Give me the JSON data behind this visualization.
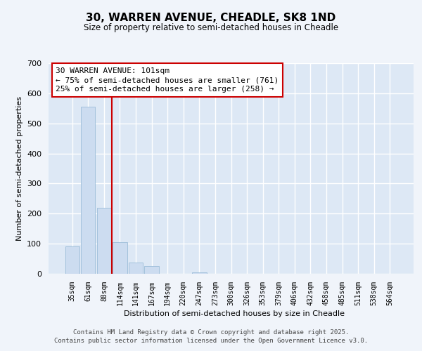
{
  "title_line1": "30, WARREN AVENUE, CHEADLE, SK8 1ND",
  "title_line2": "Size of property relative to semi-detached houses in Cheadle",
  "xlabel": "Distribution of semi-detached houses by size in Cheadle",
  "ylabel": "Number of semi-detached properties",
  "categories": [
    "35sqm",
    "61sqm",
    "88sqm",
    "114sqm",
    "141sqm",
    "167sqm",
    "194sqm",
    "220sqm",
    "247sqm",
    "273sqm",
    "300sqm",
    "326sqm",
    "353sqm",
    "379sqm",
    "406sqm",
    "432sqm",
    "458sqm",
    "485sqm",
    "511sqm",
    "538sqm",
    "564sqm"
  ],
  "values": [
    90,
    555,
    220,
    105,
    37,
    25,
    0,
    0,
    5,
    0,
    0,
    0,
    0,
    0,
    0,
    0,
    0,
    0,
    0,
    0,
    0
  ],
  "bar_color": "#ccdcf0",
  "bar_edge_color": "#9bbcd8",
  "background_color": "#dde8f5",
  "grid_color": "#ffffff",
  "vline_color": "#cc0000",
  "vline_x": 2.5,
  "annotation_text": "30 WARREN AVENUE: 101sqm\n← 75% of semi-detached houses are smaller (761)\n25% of semi-detached houses are larger (258) →",
  "annotation_box_color": "#ffffff",
  "annotation_box_edge": "#cc0000",
  "footer_line1": "Contains HM Land Registry data © Crown copyright and database right 2025.",
  "footer_line2": "Contains public sector information licensed under the Open Government Licence v3.0.",
  "ylim": [
    0,
    700
  ],
  "yticks": [
    0,
    100,
    200,
    300,
    400,
    500,
    600,
    700
  ],
  "fig_bg": "#f0f4fa"
}
